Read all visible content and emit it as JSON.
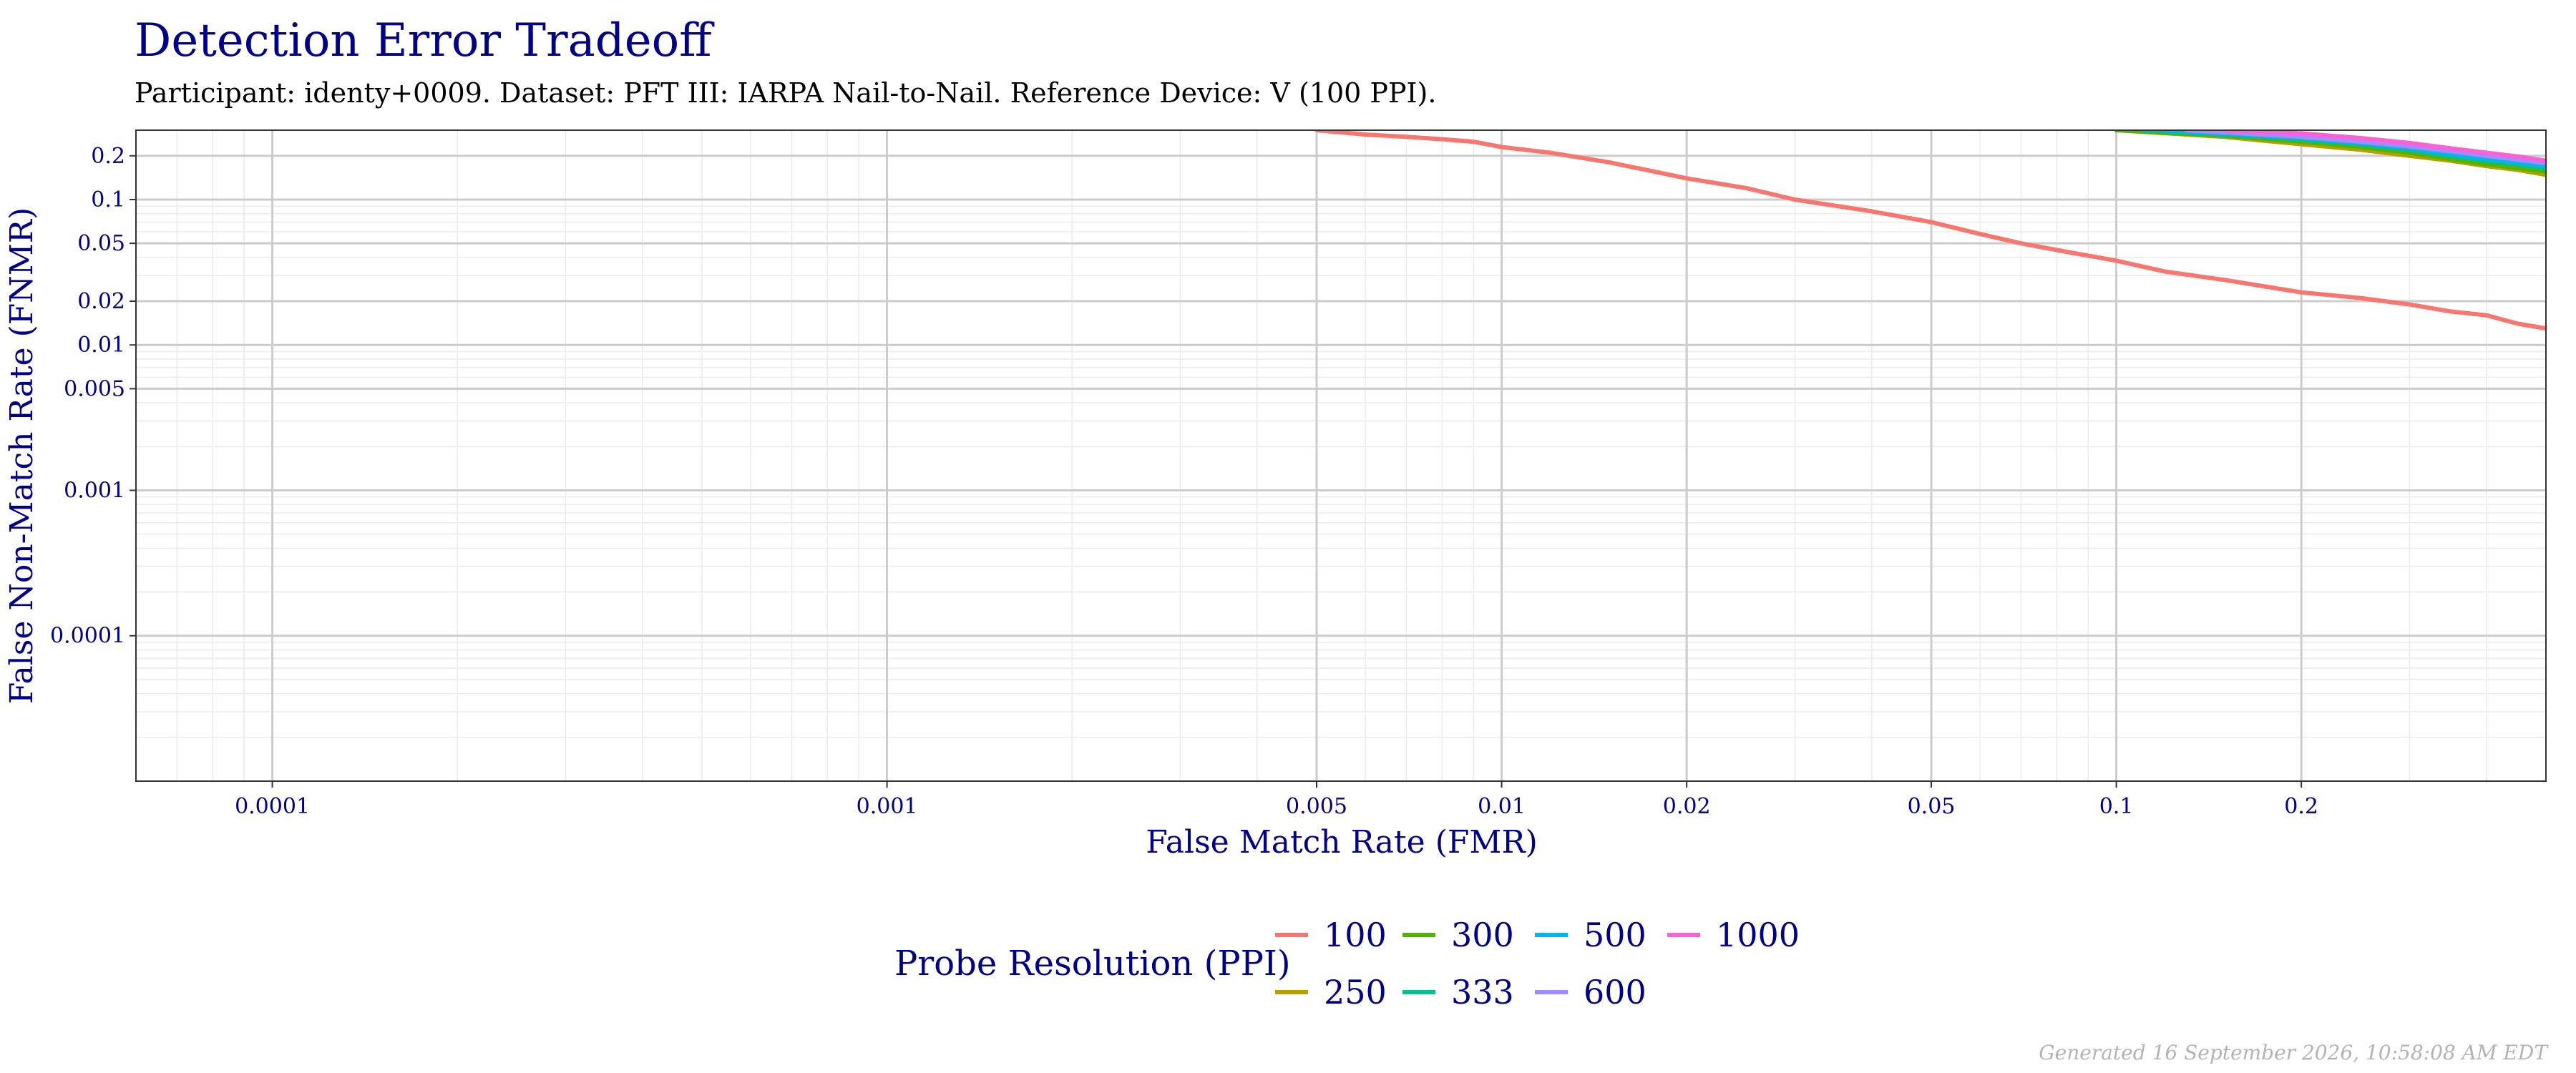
{
  "chart_data": {
    "type": "line",
    "title": "Detection Error Tradeoff",
    "subtitle": "Participant: identy+0009. Dataset: PFT III: IARPA Nail-to-Nail. Reference Device: V (100 PPI).",
    "xlabel": "False Match Rate (FMR)",
    "ylabel": "False Non-Match Rate (FNMR)",
    "x_scale": "log",
    "y_scale": "log",
    "xlim": [
      6e-05,
      0.5
    ],
    "ylim": [
      1e-05,
      0.3
    ],
    "x_ticks": [
      {
        "value": 0.0001,
        "label": "0.0001"
      },
      {
        "value": 0.001,
        "label": "0.001"
      },
      {
        "value": 0.005,
        "label": "0.005"
      },
      {
        "value": 0.01,
        "label": "0.01"
      },
      {
        "value": 0.02,
        "label": "0.02"
      },
      {
        "value": 0.05,
        "label": "0.05"
      },
      {
        "value": 0.1,
        "label": "0.1"
      },
      {
        "value": 0.2,
        "label": "0.2"
      }
    ],
    "y_ticks": [
      {
        "value": 0.2,
        "label": "0.2"
      },
      {
        "value": 0.1,
        "label": "0.1"
      },
      {
        "value": 0.05,
        "label": "0.05"
      },
      {
        "value": 0.02,
        "label": "0.02"
      },
      {
        "value": 0.01,
        "label": "0.01"
      },
      {
        "value": 0.005,
        "label": "0.005"
      },
      {
        "value": 0.001,
        "label": "0.001"
      },
      {
        "value": 0.0001,
        "label": "0.0001"
      }
    ],
    "grid": true,
    "legend": {
      "title": "Probe Resolution (PPI)",
      "position": "bottom"
    },
    "series": [
      {
        "name": "100",
        "color": "#f8766d",
        "x": [
          0.005,
          0.006,
          0.007,
          0.008,
          0.009,
          0.01,
          0.012,
          0.015,
          0.02,
          0.025,
          0.03,
          0.04,
          0.05,
          0.06,
          0.07,
          0.08,
          0.1,
          0.12,
          0.15,
          0.2,
          0.25,
          0.3,
          0.35,
          0.4,
          0.45,
          0.5
        ],
        "y": [
          0.3,
          0.28,
          0.27,
          0.26,
          0.25,
          0.23,
          0.21,
          0.18,
          0.14,
          0.12,
          0.1,
          0.083,
          0.07,
          0.058,
          0.05,
          0.045,
          0.038,
          0.032,
          0.028,
          0.023,
          0.021,
          0.019,
          0.017,
          0.016,
          0.014,
          0.013
        ]
      },
      {
        "name": "250",
        "color": "#b79f00",
        "x": [
          0.1,
          0.15,
          0.2,
          0.25,
          0.3,
          0.35,
          0.4,
          0.45,
          0.5
        ],
        "y": [
          0.3,
          0.27,
          0.24,
          0.22,
          0.2,
          0.185,
          0.17,
          0.16,
          0.148
        ]
      },
      {
        "name": "300",
        "color": "#53b400",
        "x": [
          0.1,
          0.15,
          0.2,
          0.25,
          0.3,
          0.35,
          0.4,
          0.45,
          0.5
        ],
        "y": [
          0.3,
          0.275,
          0.25,
          0.23,
          0.21,
          0.19,
          0.175,
          0.165,
          0.155
        ]
      },
      {
        "name": "333",
        "color": "#00c094",
        "x": [
          0.11,
          0.15,
          0.2,
          0.25,
          0.3,
          0.35,
          0.4,
          0.45,
          0.5
        ],
        "y": [
          0.3,
          0.28,
          0.26,
          0.24,
          0.22,
          0.2,
          0.185,
          0.175,
          0.165
        ]
      },
      {
        "name": "500",
        "color": "#00b6eb",
        "x": [
          0.12,
          0.15,
          0.2,
          0.25,
          0.3,
          0.35,
          0.4,
          0.45,
          0.5
        ],
        "y": [
          0.3,
          0.285,
          0.265,
          0.245,
          0.225,
          0.205,
          0.19,
          0.18,
          0.17
        ]
      },
      {
        "name": "600",
        "color": "#a58aff",
        "x": [
          0.13,
          0.15,
          0.2,
          0.25,
          0.3,
          0.35,
          0.4,
          0.45,
          0.5
        ],
        "y": [
          0.3,
          0.29,
          0.27,
          0.25,
          0.232,
          0.215,
          0.2,
          0.188,
          0.178
        ]
      },
      {
        "name": "1000",
        "color": "#fb61d7",
        "x": [
          0.15,
          0.2,
          0.25,
          0.3,
          0.35,
          0.4,
          0.45,
          0.5
        ],
        "y": [
          0.3,
          0.285,
          0.265,
          0.245,
          0.225,
          0.21,
          0.198,
          0.185
        ]
      }
    ]
  },
  "caption": "Generated 16 September 2026, 10:58:08 AM EDT"
}
